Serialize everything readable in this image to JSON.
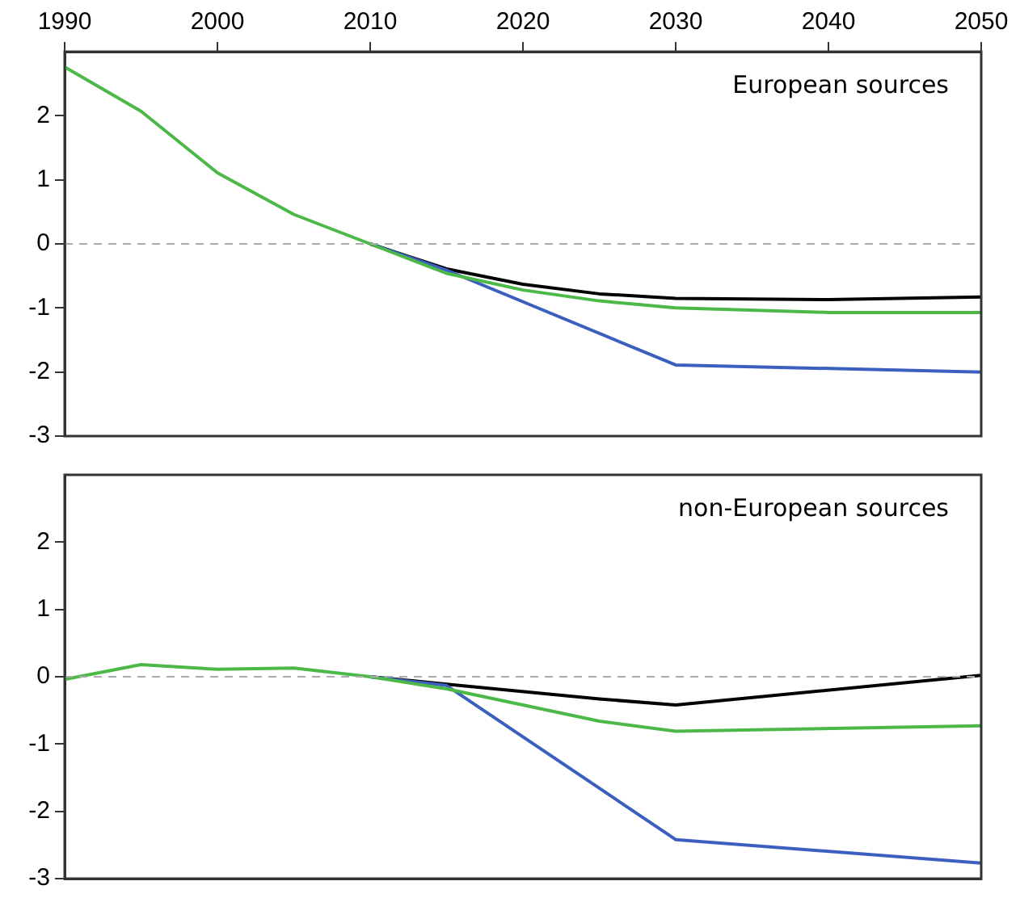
{
  "chart_data": [
    {
      "type": "line",
      "x": [
        1990,
        1995,
        2000,
        2005,
        2010,
        2015,
        2020,
        2025,
        2030,
        2040,
        2050
      ],
      "xlim": [
        1990,
        2050
      ],
      "xticks": [
        1990,
        2000,
        2010,
        2020,
        2030,
        2040,
        2050
      ],
      "ylim": [
        -3,
        3
      ],
      "yticks": [
        -3,
        -2,
        -1,
        0,
        1,
        2
      ],
      "grid": false,
      "legend": false,
      "annotations": [
        "European sources"
      ],
      "ref_lines": [
        {
          "axis": "y",
          "value": 0,
          "color": "#aaaaaa",
          "line_style": "dashed"
        }
      ],
      "series": [
        {
          "color": "#000000",
          "values": [
            null,
            null,
            null,
            null,
            0,
            -0.39,
            -0.63,
            -0.78,
            -0.85,
            -0.87,
            -0.83
          ]
        },
        {
          "color": "#3a5fbf",
          "values": [
            null,
            null,
            null,
            null,
            0,
            -0.41,
            null,
            null,
            -1.89,
            null,
            -2.0
          ]
        },
        {
          "color": "#4cb848",
          "values": [
            2.76,
            2.07,
            1.11,
            0.46,
            0,
            -0.46,
            -0.72,
            -0.89,
            -1.0,
            -1.07,
            -1.07
          ]
        }
      ]
    },
    {
      "type": "line",
      "x": [
        1990,
        1995,
        2000,
        2005,
        2010,
        2015,
        2025,
        2030,
        2050
      ],
      "xlim": [
        1990,
        2050
      ],
      "ylim": [
        -3,
        3
      ],
      "yticks": [
        -3,
        -2,
        -1,
        0,
        1,
        2
      ],
      "tick_labels": "y",
      "grid": false,
      "legend": false,
      "annotations": [
        "non-European sources"
      ],
      "ref_lines": [
        {
          "axis": "y",
          "value": 0,
          "color": "#aaaaaa",
          "line_style": "dashed"
        }
      ],
      "series": [
        {
          "color": "#000000",
          "values": [
            null,
            null,
            null,
            null,
            0,
            -0.11,
            -0.33,
            -0.42,
            0.02
          ]
        },
        {
          "color": "#3a5fbf",
          "values": [
            null,
            null,
            null,
            null,
            0,
            -0.13,
            null,
            -2.42,
            -2.77
          ]
        },
        {
          "color": "#4cb848",
          "values": [
            -0.04,
            0.18,
            0.11,
            0.13,
            0,
            -0.18,
            -0.66,
            -0.81,
            -0.73
          ]
        }
      ]
    }
  ]
}
